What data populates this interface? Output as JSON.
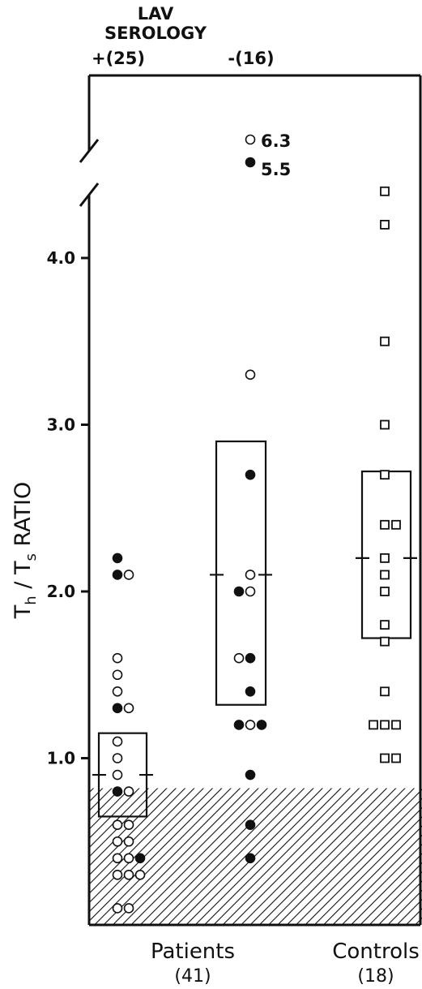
{
  "chart_data": {
    "type": "scatter",
    "title": "",
    "group_header": {
      "line1": "LAV",
      "line2": "SEROLOGY"
    },
    "subgroups": {
      "positive": "+(25)",
      "negative": "-(16)"
    },
    "ylabel": "Th / Ts RATIO",
    "ylabel_parts": {
      "T1": "T",
      "h": "h",
      "slash": " / ",
      "T2": "T",
      "s": "s",
      "rest": " RATIO"
    },
    "yticks": [
      "1.0",
      "2.0",
      "3.0",
      "4.0"
    ],
    "ylim": [
      0,
      4.5
    ],
    "y_axis_break": true,
    "shaded_region": {
      "from": 0,
      "to": 0.82
    },
    "categories": [
      {
        "name": "Patients",
        "count": "(41)"
      },
      {
        "name": "Controls",
        "count": "(18)"
      }
    ],
    "outlier_labels": [
      "6.3",
      "5.5"
    ],
    "groups": [
      {
        "id": "lav_positive",
        "box": {
          "low": 0.65,
          "high": 1.15,
          "median": 0.9
        },
        "points": [
          {
            "x": 0,
            "y": 2.2,
            "filled": true
          },
          {
            "x": 0,
            "y": 2.1,
            "filled": true
          },
          {
            "x": 1,
            "y": 2.1,
            "filled": false
          },
          {
            "x": 0,
            "y": 1.6,
            "filled": false
          },
          {
            "x": 0,
            "y": 1.5,
            "filled": false
          },
          {
            "x": 0,
            "y": 1.4,
            "filled": false
          },
          {
            "x": 0,
            "y": 1.3,
            "filled": true
          },
          {
            "x": 1,
            "y": 1.3,
            "filled": false
          },
          {
            "x": 0,
            "y": 1.1,
            "filled": false
          },
          {
            "x": 0,
            "y": 1.0,
            "filled": false
          },
          {
            "x": 0,
            "y": 0.9,
            "filled": false
          },
          {
            "x": 0,
            "y": 0.8,
            "filled": true
          },
          {
            "x": 1,
            "y": 0.8,
            "filled": false
          },
          {
            "x": 0,
            "y": 0.6,
            "filled": false
          },
          {
            "x": 1,
            "y": 0.6,
            "filled": false
          },
          {
            "x": 0,
            "y": 0.5,
            "filled": false
          },
          {
            "x": 1,
            "y": 0.5,
            "filled": false
          },
          {
            "x": 0,
            "y": 0.4,
            "filled": false
          },
          {
            "x": 1,
            "y": 0.4,
            "filled": false
          },
          {
            "x": 2,
            "y": 0.4,
            "filled": true
          },
          {
            "x": 0,
            "y": 0.3,
            "filled": false
          },
          {
            "x": 1,
            "y": 0.3,
            "filled": false
          },
          {
            "x": 2,
            "y": 0.3,
            "filled": false
          },
          {
            "x": 0,
            "y": 0.1,
            "filled": false
          },
          {
            "x": 1,
            "y": 0.1,
            "filled": false
          }
        ]
      },
      {
        "id": "lav_negative",
        "box": {
          "low": 1.32,
          "high": 2.9,
          "median": 2.1
        },
        "points": [
          {
            "x": 0,
            "y": 6.3,
            "filled": false,
            "outlier_label": "6.3"
          },
          {
            "x": 0,
            "y": 5.5,
            "filled": true,
            "outlier_label": "5.5"
          },
          {
            "x": 0,
            "y": 3.3,
            "filled": false
          },
          {
            "x": 0,
            "y": 2.7,
            "filled": true
          },
          {
            "x": 0,
            "y": 2.1,
            "filled": false
          },
          {
            "x": -1,
            "y": 2.0,
            "filled": true
          },
          {
            "x": 0,
            "y": 2.0,
            "filled": false
          },
          {
            "x": -1,
            "y": 1.6,
            "filled": false
          },
          {
            "x": 0,
            "y": 1.6,
            "filled": true
          },
          {
            "x": 0,
            "y": 1.4,
            "filled": true
          },
          {
            "x": -1,
            "y": 1.2,
            "filled": true
          },
          {
            "x": 0,
            "y": 1.2,
            "filled": false
          },
          {
            "x": 1,
            "y": 1.2,
            "filled": true
          },
          {
            "x": 0,
            "y": 0.9,
            "filled": true
          },
          {
            "x": 0,
            "y": 0.6,
            "filled": true
          },
          {
            "x": 0,
            "y": 0.4,
            "filled": true
          }
        ]
      },
      {
        "id": "controls",
        "box": {
          "low": 1.72,
          "high": 2.72,
          "median": 2.2
        },
        "points": [
          {
            "x": 0,
            "y": 4.4,
            "filled": false
          },
          {
            "x": 0,
            "y": 4.2,
            "filled": false
          },
          {
            "x": 0,
            "y": 3.5,
            "filled": false
          },
          {
            "x": 0,
            "y": 3.0,
            "filled": false
          },
          {
            "x": 0,
            "y": 2.7,
            "filled": false
          },
          {
            "x": 0,
            "y": 2.4,
            "filled": false
          },
          {
            "x": 1,
            "y": 2.4,
            "filled": false
          },
          {
            "x": 0,
            "y": 2.2,
            "filled": false
          },
          {
            "x": 0,
            "y": 2.1,
            "filled": false
          },
          {
            "x": 0,
            "y": 2.0,
            "filled": false
          },
          {
            "x": 0,
            "y": 1.8,
            "filled": false
          },
          {
            "x": 0,
            "y": 1.7,
            "filled": false
          },
          {
            "x": 0,
            "y": 1.4,
            "filled": false
          },
          {
            "x": -1,
            "y": 1.2,
            "filled": false
          },
          {
            "x": 0,
            "y": 1.2,
            "filled": false
          },
          {
            "x": 1,
            "y": 1.2,
            "filled": false
          },
          {
            "x": 0,
            "y": 1.0,
            "filled": false
          },
          {
            "x": 1,
            "y": 1.0,
            "filled": false
          }
        ]
      }
    ]
  }
}
